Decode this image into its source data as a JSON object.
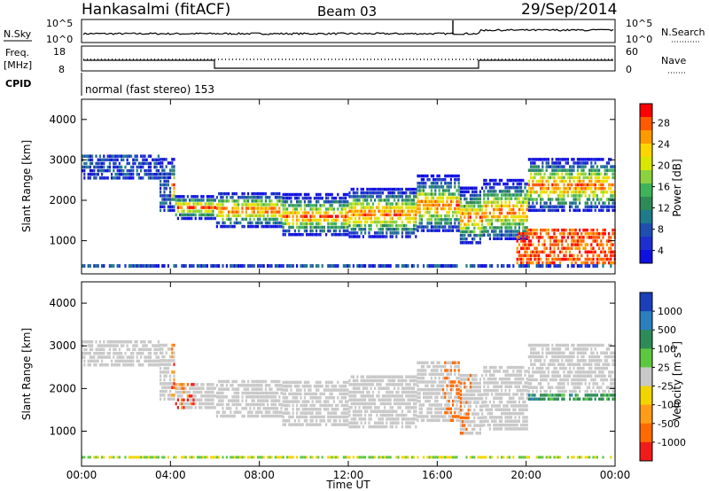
{
  "header": {
    "station": "Hankasalmi (fitACF)",
    "beam": "Beam 03",
    "date": "29/Sep/2014"
  },
  "status_panels": {
    "nsky_label": "N.Sky",
    "nsearch_label": "N.Search",
    "nsky_ticks": [
      "10^5",
      "10^0"
    ],
    "nsky_right_ticks": [
      "10^5",
      "10^0"
    ],
    "freq_label": "Freq.",
    "freq_unit": "[MHz]",
    "freq_ticks": [
      "18",
      "8"
    ],
    "nave_label": "Nave",
    "nave_ticks": [
      "60",
      "0"
    ],
    "cpid_label": "CPID",
    "cpid_text": "normal (fast stereo) 153"
  },
  "chart_data": [
    {
      "type": "heatmap",
      "name": "power",
      "ylabel": "Slant Range [km]",
      "y_ticks": [
        "4000",
        "3000",
        "2000",
        "1000"
      ],
      "ylim": [
        180,
        4500
      ],
      "colorbar_label": "Power [dB]",
      "colorbar_ticks": [
        "28",
        "24",
        "20",
        "16",
        "12",
        "8",
        "4"
      ],
      "colorbar_colors": [
        "#ff0000",
        "#ff5a00",
        "#ff9900",
        "#ffd500",
        "#d9e600",
        "#8cd13f",
        "#3fb35a",
        "#2e8b57",
        "#1f7a8c",
        "#1f4fb0",
        "#1e2fd0",
        "#1010e0"
      ],
      "grid": false
    },
    {
      "type": "heatmap",
      "name": "velocity",
      "ylabel": "Slant Range [km]",
      "y_ticks": [
        "4000",
        "3000",
        "2000",
        "1000"
      ],
      "ylim": [
        180,
        4500
      ],
      "colorbar_label": "Velocity [m s^-1]",
      "colorbar_ticks": [
        "1000",
        "500",
        "100",
        "25",
        "-25",
        "-100",
        "-500",
        "-1000"
      ],
      "colorbar_colors": [
        "#1a3fb8",
        "#2b7fbf",
        "#2e8b57",
        "#5cc840",
        "#c8c8c8",
        "#f2d400",
        "#ff9c1a",
        "#ff6a00",
        "#f21b1b"
      ],
      "x_ticks": [
        "00:00",
        "04:00",
        "08:00",
        "12:00",
        "16:00",
        "20:00",
        "00:00"
      ],
      "xlabel": "Time UT",
      "grid": false
    }
  ]
}
